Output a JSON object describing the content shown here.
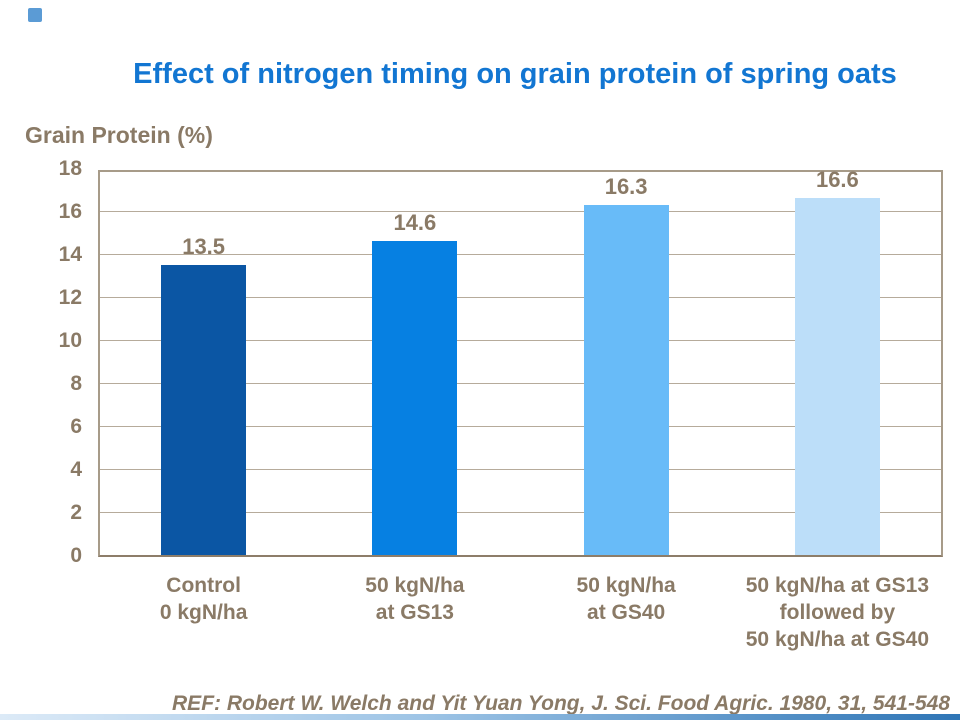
{
  "title": "Effect of nitrogen timing on grain protein of spring oats",
  "y_axis_label": "Grain Protein (%)",
  "reference": "REF: Robert W. Welch and Yit Yuan Yong, J. Sci. Food Agric. 1980, 31, 541-548",
  "colors": {
    "title_text": "#1276d2",
    "chart_text": "#8a7a66",
    "plot_border": "#a79b89",
    "gridline": "#b6ab9b",
    "decoration_square": "#5b9bd5",
    "decoration_bar_gradient": [
      "#dceaf7",
      "#9cc3e5",
      "#2e75b6"
    ]
  },
  "chart_data": {
    "type": "bar",
    "title": "Effect of nitrogen timing on grain protein of spring oats",
    "xlabel": "",
    "ylabel": "Grain Protein (%)",
    "ylim": [
      0,
      18
    ],
    "yticks": [
      0,
      2,
      4,
      6,
      8,
      10,
      12,
      14,
      16,
      18
    ],
    "grid": true,
    "legend": false,
    "categories": [
      [
        "Control",
        "0 kgN/ha"
      ],
      [
        "50 kgN/ha",
        "at GS13"
      ],
      [
        "50 kgN/ha",
        "at GS40"
      ],
      [
        "50 kgN/ha at GS13",
        "followed by",
        "50 kgN/ha at GS40"
      ]
    ],
    "values": [
      13.5,
      14.6,
      16.3,
      16.6
    ],
    "value_labels": [
      "13.5",
      "14.6",
      "16.3",
      "16.6"
    ],
    "bar_colors": [
      "#0b56a4",
      "#0680e2",
      "#68bbf8",
      "#bcdef9"
    ]
  }
}
